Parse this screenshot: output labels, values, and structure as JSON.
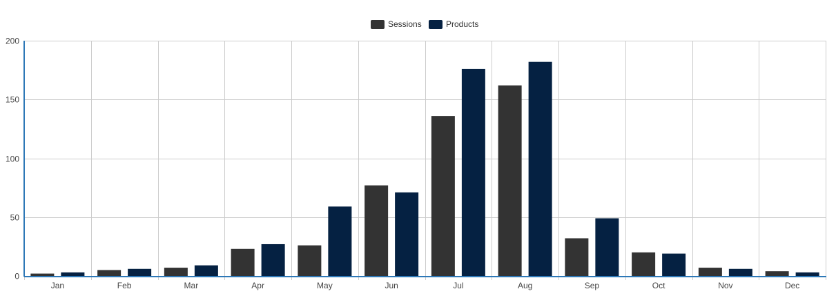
{
  "chart_data": {
    "type": "bar",
    "categories": [
      "Jan",
      "Feb",
      "Mar",
      "Apr",
      "May",
      "Jun",
      "Jul",
      "Aug",
      "Sep",
      "Oct",
      "Nov",
      "Dec"
    ],
    "series": [
      {
        "name": "Sessions",
        "color": "#333333",
        "values": [
          2,
          5,
          7,
          23,
          26,
          77,
          136,
          162,
          32,
          20,
          7,
          4
        ]
      },
      {
        "name": "Products",
        "color": "#052142",
        "values": [
          3,
          6,
          9,
          27,
          59,
          71,
          176,
          182,
          49,
          19,
          6,
          3
        ]
      }
    ],
    "ylim": [
      0,
      200
    ],
    "yticks": [
      "0",
      "50",
      "100",
      "150",
      "200"
    ],
    "grid": true,
    "legend_position": "top-center",
    "axis_color": "#2e78b7"
  }
}
